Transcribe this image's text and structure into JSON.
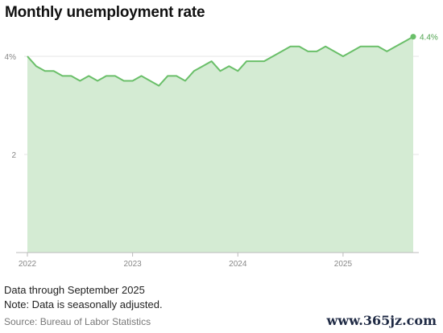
{
  "title": "Monthly unemployment rate",
  "notes": {
    "line1": "Data through September 2025",
    "line2": "Note: Data is seasonally adjusted."
  },
  "source": "Source: Bureau of Labor Statistics",
  "watermark": "www.365jz.com",
  "colors": {
    "line": "#6abf69",
    "area": "#d4ebd3",
    "grid": "#e6e6e6",
    "axis": "#bbbbbb",
    "tick_text": "#888888",
    "end_label": "#4fa34f"
  },
  "chart_data": {
    "type": "area",
    "title": "Monthly unemployment rate",
    "xlabel": "",
    "ylabel": "",
    "ylim": [
      0,
      4.4
    ],
    "xlim": [
      "2022-01",
      "2025-09"
    ],
    "y_ticks": [
      {
        "value": 4,
        "label": "4%"
      },
      {
        "value": 2,
        "label": "2"
      }
    ],
    "x_ticks": [
      {
        "month_index": 0,
        "label": "2022"
      },
      {
        "month_index": 12,
        "label": "2023"
      },
      {
        "month_index": 24,
        "label": "2024"
      },
      {
        "month_index": 36,
        "label": "2025"
      }
    ],
    "grid": true,
    "end_label": "4.4%",
    "series": [
      {
        "x": [
          "2022-01",
          "2022-02",
          "2022-03",
          "2022-04",
          "2022-05",
          "2022-06",
          "2022-07",
          "2022-08",
          "2022-09",
          "2022-10",
          "2022-11",
          "2022-12",
          "2023-01",
          "2023-02",
          "2023-03",
          "2023-04",
          "2023-05",
          "2023-06",
          "2023-07",
          "2023-08",
          "2023-09",
          "2023-10",
          "2023-11",
          "2023-12",
          "2024-01",
          "2024-02",
          "2024-03",
          "2024-04",
          "2024-05",
          "2024-06",
          "2024-07",
          "2024-08",
          "2024-09",
          "2024-10",
          "2024-11",
          "2024-12",
          "2025-01",
          "2025-02",
          "2025-03",
          "2025-04",
          "2025-05",
          "2025-06",
          "2025-07",
          "2025-08",
          "2025-09"
        ],
        "values": [
          4.0,
          3.8,
          3.7,
          3.7,
          3.6,
          3.6,
          3.5,
          3.6,
          3.5,
          3.6,
          3.6,
          3.5,
          3.5,
          3.6,
          3.5,
          3.4,
          3.6,
          3.6,
          3.5,
          3.7,
          3.8,
          3.9,
          3.7,
          3.8,
          3.7,
          3.9,
          3.9,
          3.9,
          4.0,
          4.1,
          4.2,
          4.2,
          4.1,
          4.1,
          4.2,
          4.1,
          4.0,
          4.1,
          4.2,
          4.2,
          4.2,
          4.1,
          4.2,
          4.3,
          4.4
        ]
      }
    ]
  }
}
